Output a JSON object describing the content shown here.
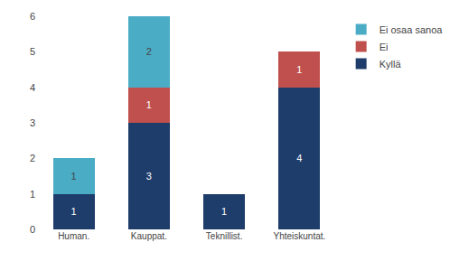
{
  "chart_data": {
    "type": "bar",
    "stacked": true,
    "categories": [
      "Human.",
      "Kauppat.",
      "Teknillist.",
      "Yhteiskuntat."
    ],
    "series": [
      {
        "name": "Kyllä",
        "color": "#1F3D6B",
        "values": [
          1,
          3,
          1,
          4
        ]
      },
      {
        "name": "Ei",
        "color": "#C0504D",
        "values": [
          0,
          1,
          0,
          1
        ]
      },
      {
        "name": "Ei osaa sanoa",
        "color": "#4BACC6",
        "values": [
          1,
          2,
          0,
          0
        ]
      }
    ],
    "ylim": [
      0,
      6
    ],
    "yticks": [
      0,
      1,
      2,
      3,
      4,
      5,
      6
    ],
    "grid": false,
    "legend": "upper right",
    "data_labels": true
  }
}
